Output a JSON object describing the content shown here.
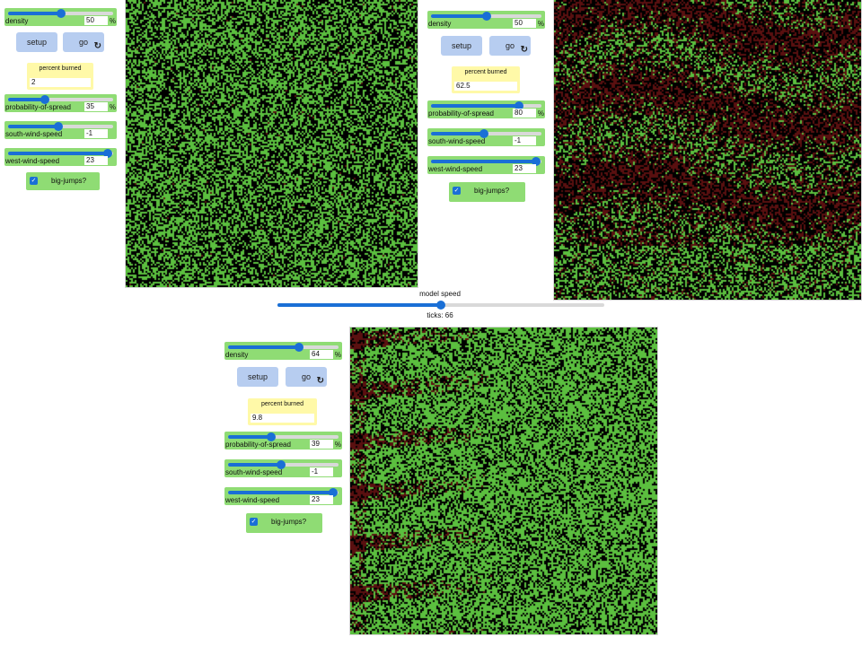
{
  "colors": {
    "widget_green": "#8fdc74",
    "button_blue": "#b7cdf0",
    "monitor_yellow": "#fff9a8",
    "tree_green": "#5bbf3f",
    "burned_red": "#5a1010",
    "background_black": "#000000"
  },
  "speed": {
    "label": "model speed",
    "ticks_text": "ticks: 66",
    "fraction": 0.5
  },
  "panels": [
    {
      "density": {
        "label": "density",
        "value": "50",
        "unit": "%",
        "fraction": 0.5
      },
      "setup_label": "setup",
      "go_label": "go",
      "go_icon": "forever-icon",
      "percent_burned": {
        "label": "percent burned",
        "value": "2"
      },
      "probability": {
        "label": "probability-of-spread",
        "value": "35",
        "unit": "%",
        "fraction": 0.35
      },
      "south_wind": {
        "label": "south-wind-speed",
        "value": "-1",
        "fraction": 0.48
      },
      "west_wind": {
        "label": "west-wind-speed",
        "value": "23",
        "fraction": 0.95
      },
      "big_jumps": {
        "label": "big-jumps?",
        "checked": true,
        "check_glyph": "✓"
      },
      "view": {
        "burned_fraction": 0.02,
        "tree_density": 0.5,
        "pattern": "uniform"
      }
    },
    {
      "density": {
        "label": "density",
        "value": "50",
        "unit": "%",
        "fraction": 0.5
      },
      "setup_label": "setup",
      "go_label": "go",
      "go_icon": "forever-icon",
      "percent_burned": {
        "label": "percent burned",
        "value": "62.5"
      },
      "probability": {
        "label": "probability-of-spread",
        "value": "80",
        "unit": "%",
        "fraction": 0.8
      },
      "south_wind": {
        "label": "south-wind-speed",
        "value": "-1",
        "fraction": 0.48
      },
      "west_wind": {
        "label": "west-wind-speed",
        "value": "23",
        "fraction": 0.95
      },
      "big_jumps": {
        "label": "big-jumps?",
        "checked": true,
        "check_glyph": "✓"
      },
      "view": {
        "burned_fraction": 0.625,
        "tree_density": 0.5,
        "pattern": "bands"
      }
    },
    {
      "density": {
        "label": "density",
        "value": "64",
        "unit": "%",
        "fraction": 0.64
      },
      "setup_label": "setup",
      "go_label": "go",
      "go_icon": "forever-icon",
      "percent_burned": {
        "label": "percent burned",
        "value": "9.8"
      },
      "probability": {
        "label": "probability-of-spread",
        "value": "39",
        "unit": "%",
        "fraction": 0.39
      },
      "south_wind": {
        "label": "south-wind-speed",
        "value": "-1",
        "fraction": 0.48
      },
      "west_wind": {
        "label": "west-wind-speed",
        "value": "23",
        "fraction": 0.95
      },
      "big_jumps": {
        "label": "big-jumps?",
        "checked": true,
        "check_glyph": "✓"
      },
      "view": {
        "burned_fraction": 0.098,
        "tree_density": 0.64,
        "pattern": "left-streaks"
      }
    }
  ]
}
